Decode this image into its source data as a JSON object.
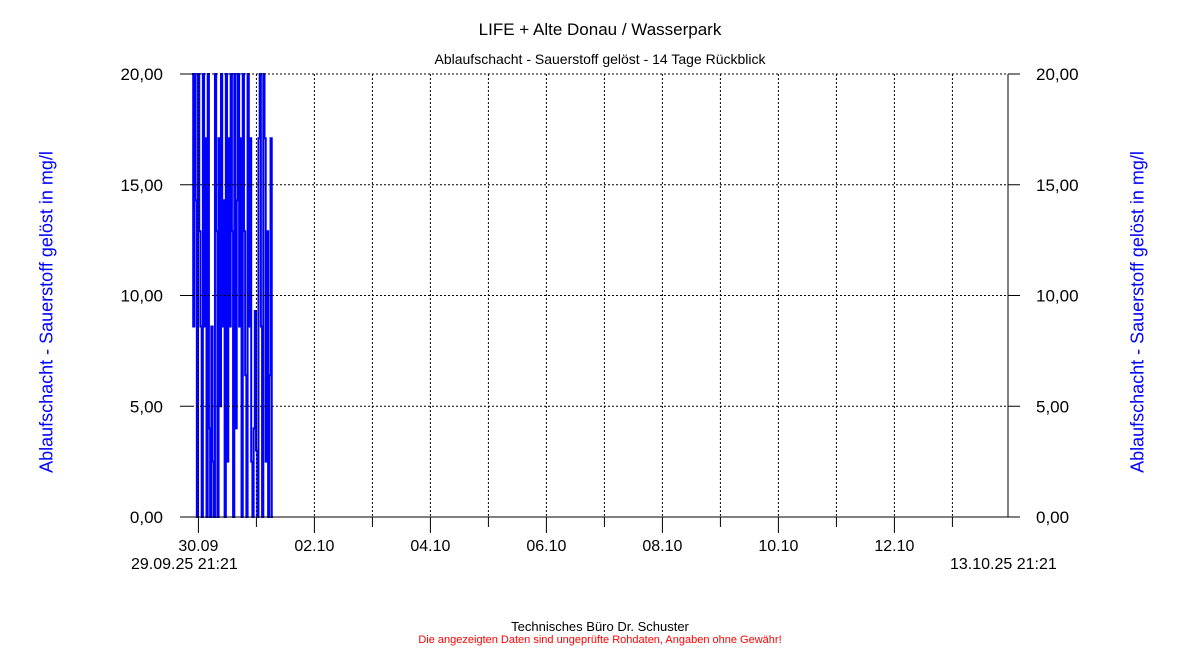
{
  "header": {
    "title": "LIFE + Alte Donau / Wasserpark",
    "subtitle": "Ablaufschacht - Sauerstoff gelöst - 14 Tage Rückblick"
  },
  "footer": {
    "company": "Technisches Büro Dr. Schuster",
    "disclaimer": "Die angezeigten Daten sind ungeprüfte Rohdaten, Angaben ohne Gewähr!"
  },
  "chart_data": {
    "type": "line",
    "title": "LIFE + Alte Donau / Wasserpark",
    "subtitle": "Ablaufschacht - Sauerstoff gelöst - 14 Tage Rückblick",
    "ylabel": "Ablaufschacht - Sauerstoff gelöst in mg/l",
    "ylabel_right": "Ablaufschacht - Sauerstoff gelöst in mg/l",
    "ylim": [
      0,
      20
    ],
    "yticks": [
      "0,00",
      "5,00",
      "10,00",
      "15,00",
      "20,00"
    ],
    "x_start": "29.09.25 21:21",
    "x_end": "13.10.25 21:21",
    "xlim_days": [
      0,
      14
    ],
    "xticks": [
      "30.09",
      "02.10",
      "04.10",
      "06.10",
      "08.10",
      "10.10",
      "12.10"
    ],
    "grid": true,
    "series_color": "#0000ff",
    "sample_interval_hours": 0.5,
    "values": [
      20,
      8.6,
      20,
      14.3,
      0,
      20,
      12.9,
      8.6,
      0,
      20,
      8.6,
      17.1,
      0,
      20,
      4,
      0,
      8.6,
      2.5,
      0,
      20,
      12.9,
      0,
      17.1,
      5,
      20,
      8.6,
      14.3,
      0,
      20,
      2.5,
      17.1,
      8.6,
      20,
      12.9,
      0,
      20,
      4,
      14.3,
      20,
      8.6,
      17.1,
      0,
      20,
      12.9,
      6.4,
      0,
      20,
      8.6,
      17.1,
      2.5,
      0,
      4,
      9.3,
      3,
      0,
      17.1,
      20,
      8.6,
      0,
      20,
      17.1,
      2.5,
      12.9,
      0,
      6.4,
      17.1,
      0
    ]
  }
}
